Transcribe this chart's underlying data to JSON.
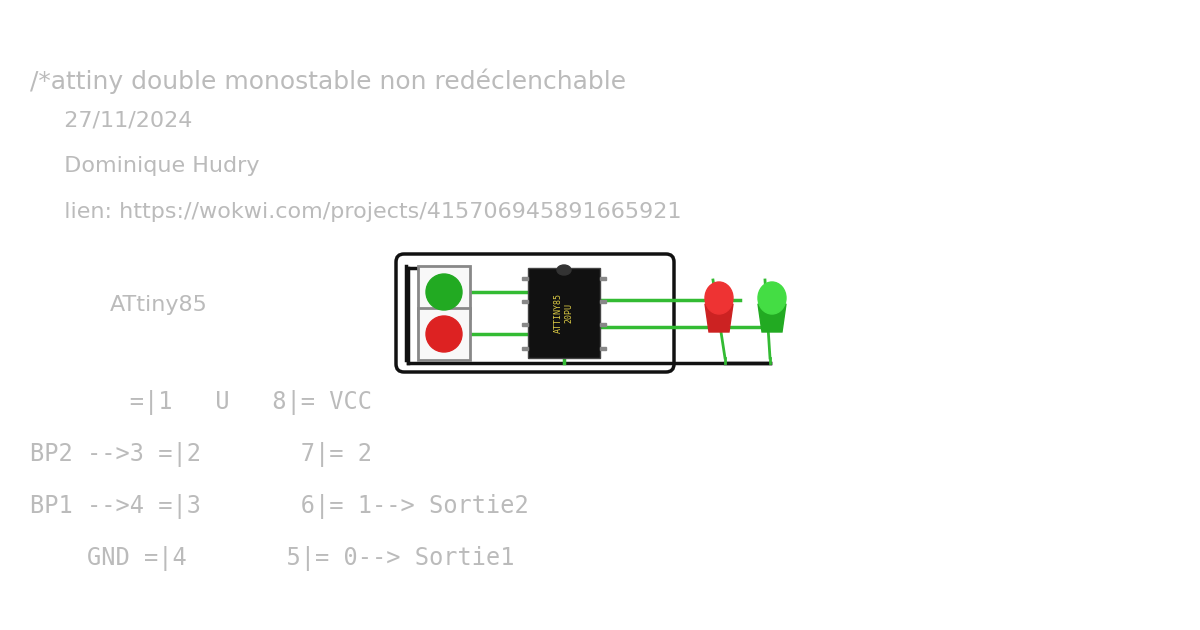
{
  "bg_color": "#ffffff",
  "text_color": "#bbbbbb",
  "title_lines": [
    "/*attiny double monostable non redéclenchable",
    "  27/11/2024",
    "  Dominique Hudry",
    "  lien: https://wokwi.com/projects/415706945891665921"
  ],
  "attiny_label": "ATtiny85",
  "pinout_lines": [
    "       =|1   U   8|= VCC",
    "BP2 -->3 =|2       7|= 2",
    "BP1 -->4 =|3       6|= 1--> Sortie2",
    "    GND =|4       5|= 0--> Sortie1"
  ],
  "title_fontsize": 18,
  "body_fontsize": 16,
  "pinout_fontsize": 17
}
